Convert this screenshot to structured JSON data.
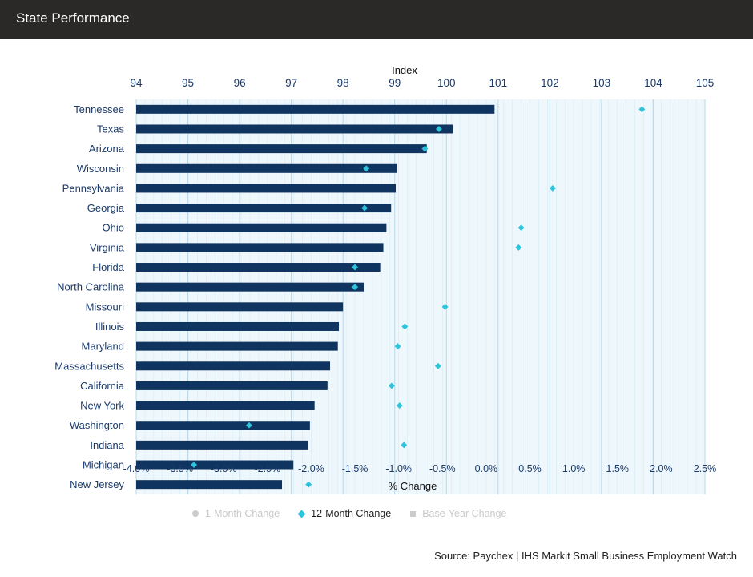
{
  "header": {
    "title": "State Performance"
  },
  "legend": [
    {
      "label": "1-Month Change",
      "symbol": "circle",
      "active": false,
      "color": "#cccccc"
    },
    {
      "label": "12-Month Change",
      "symbol": "diamond",
      "active": true,
      "color": "#2ec4dc"
    },
    {
      "label": "Base-Year Change",
      "symbol": "square",
      "active": false,
      "color": "#cccccc"
    }
  ],
  "source": "Source: Paychex | IHS Markit Small Business Employment Watch",
  "colors": {
    "bar": "#0f3460",
    "marker": "#2ec4dc",
    "plot_bg": "#eef7fc",
    "grid": "#b9d9ea",
    "header_bg": "#2b2828"
  },
  "chart_data": {
    "type": "bar",
    "orientation": "horizontal",
    "categories": [
      "Tennessee",
      "Texas",
      "Arizona",
      "Wisconsin",
      "Pennsylvania",
      "Georgia",
      "Ohio",
      "Virginia",
      "Florida",
      "North Carolina",
      "Missouri",
      "Illinois",
      "Maryland",
      "Massachusetts",
      "California",
      "New York",
      "Washington",
      "Indiana",
      "Michigan",
      "New Jersey"
    ],
    "series": [
      {
        "name": "Index",
        "type": "bar",
        "axis": "top",
        "values": [
          100.93,
          100.12,
          99.62,
          99.05,
          99.02,
          98.93,
          98.84,
          98.78,
          98.72,
          98.41,
          98.0,
          97.92,
          97.9,
          97.75,
          97.7,
          97.45,
          97.36,
          97.32,
          97.04,
          96.82
        ]
      },
      {
        "name": "12-Month Change",
        "type": "scatter",
        "axis": "bottom",
        "marker": "diamond",
        "values": [
          1.78,
          -0.54,
          -0.7,
          -1.37,
          0.76,
          -1.39,
          0.4,
          0.37,
          -1.5,
          -1.5,
          -0.47,
          -0.93,
          -1.01,
          -0.55,
          -1.08,
          -0.99,
          -2.71,
          -0.94,
          -3.34,
          -2.03
        ]
      }
    ],
    "top_axis": {
      "label": "Index",
      "range": [
        94,
        105
      ],
      "ticks": [
        94,
        95,
        96,
        97,
        98,
        99,
        100,
        101,
        102,
        103,
        104,
        105
      ]
    },
    "bottom_axis": {
      "label": "% Change",
      "range": [
        -4.0,
        2.5
      ],
      "ticks": [
        "-4.0%",
        "-3.5%",
        "-3.0%",
        "-2.5%",
        "-2.0%",
        "-1.5%",
        "-1.0%",
        "-0.5%",
        "0.0%",
        "0.5%",
        "1.0%",
        "1.5%",
        "2.0%",
        "2.5%"
      ]
    },
    "grid": true
  }
}
